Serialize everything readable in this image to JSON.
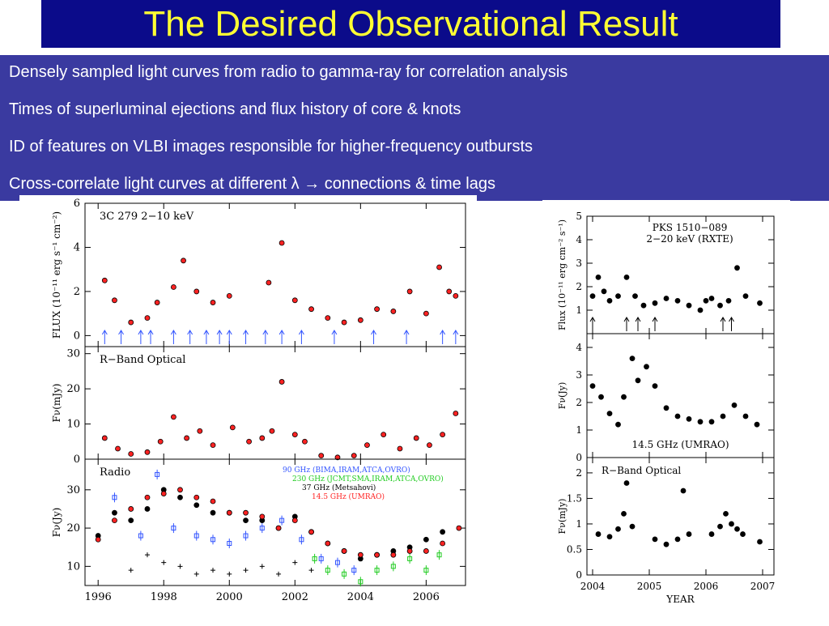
{
  "title": "The Desired Observational Result",
  "bullets": [
    "Densely sampled light curves from radio to gamma-ray for correlation analysis",
    "Times of superluminal ejections and flux history of core & knots",
    "ID of features on VLBI images responsible for higher-frequency outbursts",
    "Cross-correlate light curves at different λ → connections & time lags"
  ],
  "colors": {
    "title_bg": "#0b0b8a",
    "title_text": "#ffff33",
    "bullet_bg": "#3a3aa0",
    "red": "#ff2222",
    "blue": "#3355ff",
    "green": "#22cc22",
    "black": "#000000"
  },
  "chart_data": [
    {
      "type": "scatter",
      "source": "3C 279",
      "x_ticks": [
        "1996",
        "1998",
        "2000",
        "2002",
        "2004",
        "2006"
      ],
      "xlim": [
        1995.6,
        2007.2
      ],
      "panels": [
        {
          "label": "3C 279   2−10 keV",
          "ylabel": "FLUX (10⁻¹¹ erg s⁻¹ cm⁻²)",
          "ylim": [
            -0.5,
            6
          ],
          "y_ticks": [
            "0",
            "2",
            "4",
            "6"
          ],
          "ejection_arrows": [
            1996.2,
            1996.7,
            1997.3,
            1997.6,
            1998.3,
            1998.8,
            1999.3,
            1999.7,
            2000.0,
            2000.5,
            2001.1,
            2001.6,
            2002.2,
            2003.2,
            2004.4,
            2005.4,
            2006.5,
            2006.9
          ],
          "series": [
            {
              "name": "",
              "color": "#ff2222",
              "x": [
                1996.2,
                1996.5,
                1997.0,
                1997.5,
                1997.8,
                1998.3,
                1998.6,
                1999.0,
                1999.5,
                2000.0,
                2001.2,
                2001.6,
                2002.0,
                2002.5,
                2003.0,
                2003.5,
                2004.0,
                2004.5,
                2005.0,
                2005.5,
                2006.0,
                2006.4,
                2006.7,
                2006.9
              ],
              "y": [
                2.5,
                1.6,
                0.6,
                0.8,
                1.5,
                2.2,
                3.4,
                2.0,
                1.5,
                1.8,
                2.4,
                4.2,
                1.6,
                1.2,
                0.8,
                0.6,
                0.7,
                1.2,
                1.1,
                2.0,
                1.0,
                3.1,
                2.0,
                1.8
              ]
            }
          ]
        },
        {
          "label": "R−Band Optical",
          "ylabel": "Fν(mJy)",
          "ylim": [
            0,
            32
          ],
          "y_ticks": [
            "0",
            "10",
            "20",
            "30"
          ],
          "series": [
            {
              "name": "",
              "color": "#ff2222",
              "x": [
                1996.2,
                1996.6,
                1997.0,
                1997.5,
                1997.9,
                1998.3,
                1998.7,
                1999.1,
                1999.5,
                2000.1,
                2000.6,
                2001.0,
                2001.3,
                2001.6,
                2002.0,
                2002.3,
                2002.8,
                2003.3,
                2003.8,
                2004.2,
                2004.7,
                2005.2,
                2005.7,
                2006.1,
                2006.5,
                2006.9
              ],
              "y": [
                6,
                3,
                1.5,
                2,
                5,
                12,
                6,
                8,
                4,
                9,
                5,
                6,
                8,
                22,
                7,
                5,
                1,
                0.5,
                1,
                4,
                7,
                3,
                6,
                4,
                7,
                13
              ]
            }
          ]
        },
        {
          "label": "Radio",
          "ylabel": "Fν(Jy)",
          "ylim": [
            5,
            38
          ],
          "y_ticks": [
            "10",
            "20",
            "30"
          ],
          "series": [
            {
              "name": "90  GHz  (BIMA,IRAM,ATCA,OVRO)",
              "color": "#3355ff",
              "x": [
                1996.5,
                1997.3,
                1997.8,
                1998.3,
                1999.0,
                1999.5,
                2000.0,
                2000.5,
                2001.0,
                2001.6,
                2002.2,
                2002.8,
                2003.3,
                2003.8
              ],
              "y": [
                28,
                18,
                34,
                20,
                18,
                17,
                16,
                18,
                20,
                22,
                17,
                12,
                11,
                9
              ]
            },
            {
              "name": "230  GHz  (JCMT,SMA,IRAM,ATCA,OVRO)",
              "color": "#22cc22",
              "x": [
                2002.6,
                2003.0,
                2003.5,
                2004.0,
                2004.5,
                2005.0,
                2005.5,
                2006.0,
                2006.4
              ],
              "y": [
                12,
                9,
                8,
                6,
                9,
                10,
                12,
                9,
                13
              ]
            },
            {
              "name": "37  GHz  (Metsahovi)",
              "color": "#000000",
              "x": [
                1996.0,
                1996.5,
                1997.0,
                1997.5,
                1998.0,
                1998.5,
                1999.0,
                1999.5,
                2000.0,
                2000.5,
                2001.0,
                2001.5,
                2002.0,
                2002.5,
                2003.0,
                2003.5,
                2004.0,
                2004.5,
                2005.0,
                2005.5,
                2006.0,
                2006.5
              ],
              "y": [
                18,
                24,
                22,
                25,
                30,
                28,
                26,
                24,
                24,
                22,
                22,
                20,
                23,
                19,
                16,
                14,
                12,
                13,
                14,
                15,
                17,
                19
              ]
            },
            {
              "name": "14.5  GHz  (UMRAO)",
              "color": "#ff2222",
              "x": [
                1996.0,
                1996.5,
                1997.0,
                1997.5,
                1998.0,
                1998.5,
                1999.0,
                1999.5,
                2000.0,
                2000.5,
                2001.0,
                2001.5,
                2002.0,
                2002.5,
                2003.0,
                2003.5,
                2004.0,
                2004.5,
                2005.0,
                2005.5,
                2006.0,
                2006.5,
                2007.0
              ],
              "y": [
                17,
                22,
                25,
                28,
                29,
                30,
                28,
                27,
                24,
                24,
                23,
                20,
                22,
                19,
                16,
                14,
                13,
                13,
                13,
                14,
                14,
                16,
                20
              ]
            },
            {
              "name": "",
              "color": "#000000",
              "x": [
                1997.0,
                1997.5,
                1998.0,
                1998.5,
                1999.0,
                1999.5,
                2000.0,
                2000.5,
                2001.0,
                2001.5,
                2002.0,
                2002.5
              ],
              "y": [
                9,
                13,
                11,
                10,
                8,
                9,
                8,
                9,
                10,
                8,
                11,
                9
              ]
            }
          ]
        }
      ]
    },
    {
      "type": "scatter",
      "source": "PKS 1510−089",
      "x_ticks": [
        "2004",
        "2005",
        "2006",
        "2007"
      ],
      "xlabel": "YEAR",
      "xlim": [
        2003.9,
        2007.2
      ],
      "panels": [
        {
          "label": "PKS 1510−089\n2−20 keV (RXTE)",
          "label_lines": [
            "PKS 1510−089",
            "2−20 keV (RXTE)"
          ],
          "ylabel": "Flux (10⁻¹¹ erg cm⁻² s⁻¹)",
          "ylim": [
            0,
            5
          ],
          "y_ticks": [
            "1",
            "2",
            "3",
            "4",
            "5"
          ],
          "ejection_arrows": [
            2004.0,
            2004.6,
            2004.8,
            2005.1,
            2006.3,
            2006.45
          ],
          "series": [
            {
              "name": "",
              "color": "#000000",
              "x": [
                2004.0,
                2004.1,
                2004.2,
                2004.3,
                2004.45,
                2004.6,
                2004.75,
                2004.9,
                2005.1,
                2005.3,
                2005.5,
                2005.7,
                2005.9,
                2006.0,
                2006.1,
                2006.25,
                2006.4,
                2006.55,
                2006.7,
                2006.95
              ],
              "y": [
                1.6,
                2.4,
                1.8,
                1.4,
                1.6,
                2.4,
                1.6,
                1.2,
                1.3,
                1.5,
                1.4,
                1.2,
                1.0,
                1.4,
                1.5,
                1.2,
                1.4,
                2.8,
                1.6,
                1.3
              ]
            }
          ]
        },
        {
          "label": "14.5 GHz (UMRAO)",
          "ylabel": "Fν(Jy)",
          "ylim": [
            0,
            4.5
          ],
          "y_ticks": [
            "0",
            "1",
            "2",
            "3",
            "4"
          ],
          "series": [
            {
              "name": "",
              "color": "#000000",
              "x": [
                2004.0,
                2004.15,
                2004.3,
                2004.45,
                2004.55,
                2004.7,
                2004.8,
                2004.95,
                2005.1,
                2005.3,
                2005.5,
                2005.7,
                2005.9,
                2006.1,
                2006.3,
                2006.5,
                2006.7,
                2006.9
              ],
              "y": [
                2.6,
                2.2,
                1.6,
                1.2,
                2.2,
                3.6,
                2.8,
                3.3,
                2.6,
                1.8,
                1.5,
                1.4,
                1.3,
                1.3,
                1.5,
                1.9,
                1.5,
                1.2
              ]
            }
          ]
        },
        {
          "label": "R−Band Optical",
          "ylabel": "Fν(mJy)",
          "ylim": [
            0,
            2.3
          ],
          "y_ticks": [
            "0",
            "0.5",
            "1",
            "1.5",
            "2"
          ],
          "series": [
            {
              "name": "",
              "color": "#000000",
              "x": [
                2004.1,
                2004.3,
                2004.45,
                2004.55,
                2004.6,
                2004.7,
                2005.1,
                2005.3,
                2005.5,
                2005.6,
                2005.7,
                2006.1,
                2006.25,
                2006.35,
                2006.45,
                2006.55,
                2006.65,
                2006.95
              ],
              "y": [
                0.8,
                0.75,
                0.9,
                1.2,
                1.8,
                0.95,
                0.7,
                0.6,
                0.7,
                1.65,
                0.8,
                0.8,
                0.95,
                1.2,
                1.0,
                0.9,
                0.8,
                0.65
              ]
            }
          ]
        }
      ]
    }
  ]
}
